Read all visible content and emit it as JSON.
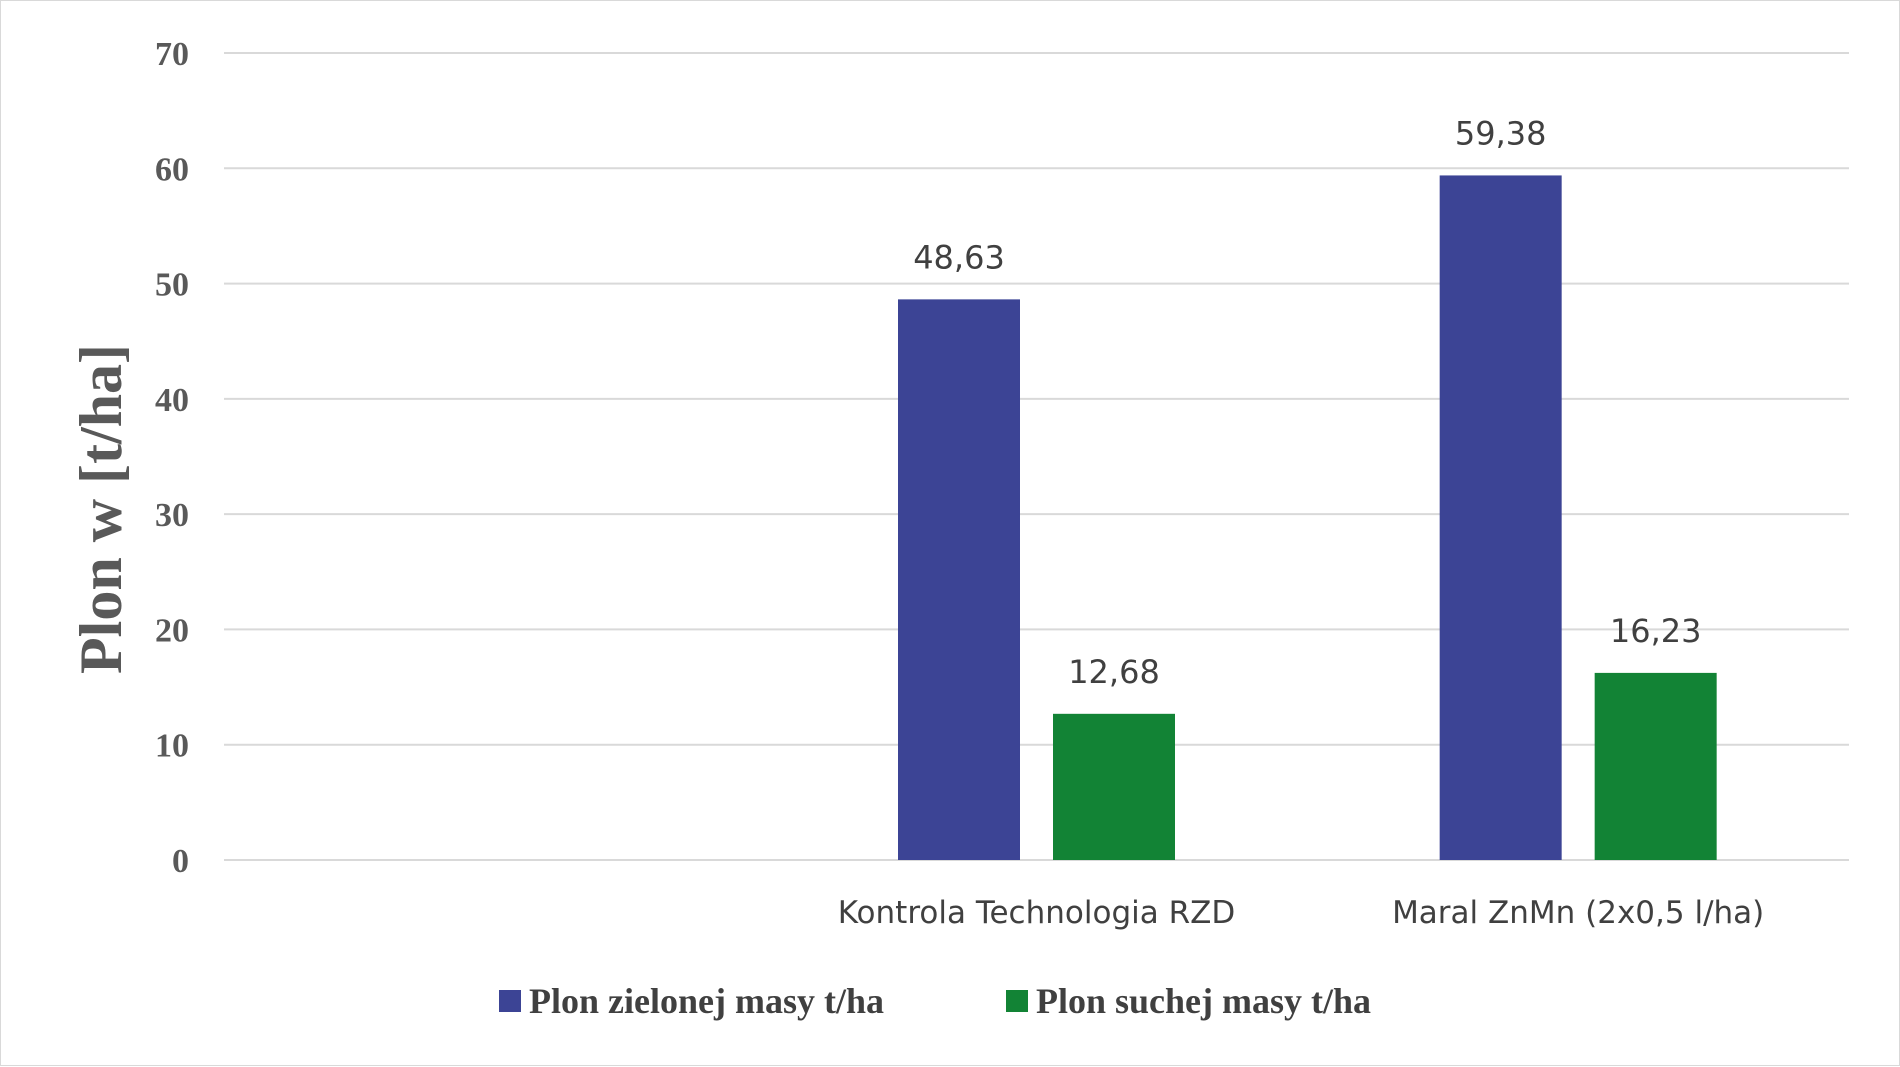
{
  "chart_data": {
    "type": "bar",
    "categories": [
      "",
      "Kontrola Technologia RZD",
      "Maral ZnMn (2x0,5 l/ha)"
    ],
    "series": [
      {
        "name": "Plon zielonej masy t/ha",
        "values": [
          null,
          48.63,
          59.38
        ],
        "labels": [
          "",
          "48,63",
          "59,38"
        ],
        "color": "#3c4495"
      },
      {
        "name": "Plon suchej masy t/ha",
        "values": [
          null,
          12.68,
          16.23
        ],
        "labels": [
          "",
          "12,68",
          "16,23"
        ],
        "color": "#128335"
      }
    ],
    "title": "",
    "xlabel": "",
    "ylabel": "Plon  w [t/ha]",
    "ylim": [
      0,
      70
    ],
    "yticks": [
      0,
      10,
      20,
      30,
      40,
      50,
      60,
      70
    ],
    "grid": true,
    "legend_position": "bottom"
  }
}
